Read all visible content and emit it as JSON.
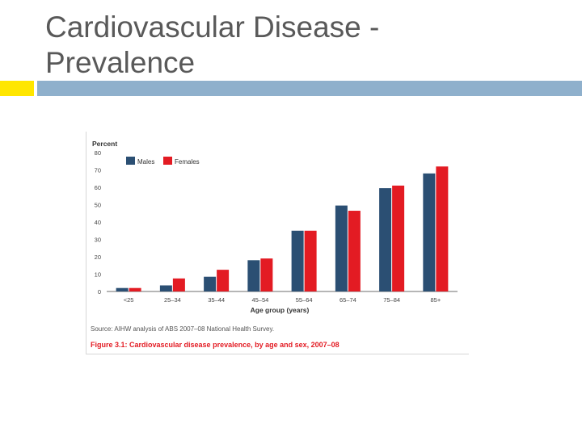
{
  "slide": {
    "title_lines": [
      "Cardiovascular Disease -",
      "Prevalence"
    ]
  },
  "colors": {
    "males": "#2b4f73",
    "females": "#e31b23",
    "accent_yellow": "#ffe600",
    "accent_bar": "#8fb0cc",
    "caption": "#e31b23"
  },
  "chart_data": {
    "type": "bar",
    "ylabel": "Percent",
    "xlabel": "Age group (years)",
    "categories": [
      "<25",
      "25–34",
      "35–44",
      "45–54",
      "55–64",
      "65–74",
      "75–84",
      "85+"
    ],
    "series": [
      {
        "name": "Males",
        "values": [
          2,
          3.5,
          8.5,
          18,
          35,
          49.5,
          59.5,
          68
        ]
      },
      {
        "name": "Females",
        "values": [
          2,
          7.5,
          12.5,
          19,
          35,
          46.5,
          61,
          72
        ]
      }
    ],
    "ylim": [
      0,
      80
    ],
    "yticks": [
      0,
      10,
      20,
      30,
      40,
      50,
      60,
      70,
      80
    ],
    "grid": false,
    "legend_position": "top-left",
    "source": "Source: AIHW analysis of ABS 2007–08 National Health Survey.",
    "caption": "Figure 3.1: Cardiovascular disease prevalence, by age and sex, 2007–08"
  }
}
